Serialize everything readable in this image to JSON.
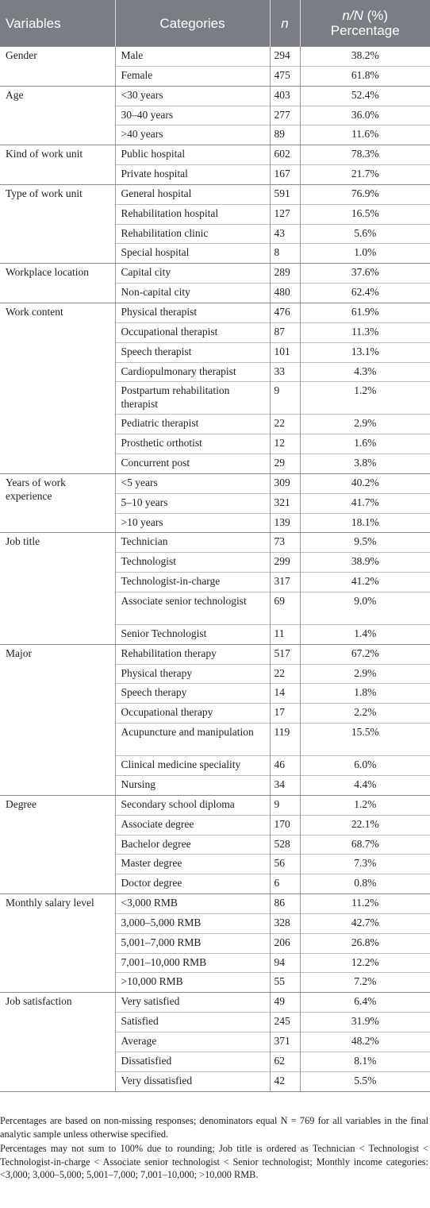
{
  "headers": {
    "variables": "Variables",
    "categories": "Categories",
    "n": "n",
    "pct_italic": "n/N",
    "pct_rest": " (%)",
    "pct_line2": "Percentage"
  },
  "groups": [
    {
      "name": "Gender",
      "rows": [
        {
          "category": "Male",
          "n": "294",
          "pct": "38.2%"
        },
        {
          "category": "Female",
          "n": "475",
          "pct": "61.8%"
        }
      ]
    },
    {
      "name": "Age",
      "rows": [
        {
          "category": "<30 years",
          "n": "403",
          "pct": "52.4%"
        },
        {
          "category": "30–40 years",
          "n": "277",
          "pct": "36.0%"
        },
        {
          "category": ">40 years",
          "n": "89",
          "pct": "11.6%"
        }
      ]
    },
    {
      "name": "Kind of work unit",
      "rows": [
        {
          "category": "Public hospital",
          "n": "602",
          "pct": "78.3%"
        },
        {
          "category": "Private hospital",
          "n": "167",
          "pct": "21.7%"
        }
      ]
    },
    {
      "name": "Type of work unit",
      "rows": [
        {
          "category": "General hospital",
          "n": "591",
          "pct": "76.9%"
        },
        {
          "category": "Rehabilitation hospital",
          "n": "127",
          "pct": "16.5%"
        },
        {
          "category": "Rehabilitation clinic",
          "n": "43",
          "pct": "5.6%"
        },
        {
          "category": "Special hospital",
          "n": "8",
          "pct": "1.0%"
        }
      ]
    },
    {
      "name": "Workplace location",
      "rows": [
        {
          "category": "Capital city",
          "n": "289",
          "pct": "37.6%"
        },
        {
          "category": "Non-capital city",
          "n": "480",
          "pct": "62.4%"
        }
      ]
    },
    {
      "name": "Work content",
      "rows": [
        {
          "category": "Physical therapist",
          "n": "476",
          "pct": "61.9%"
        },
        {
          "category": "Occupational therapist",
          "n": "87",
          "pct": "11.3%"
        },
        {
          "category": "Speech therapist",
          "n": "101",
          "pct": "13.1%"
        },
        {
          "category": "Cardiopulmonary therapist",
          "n": "33",
          "pct": "4.3%"
        },
        {
          "category": "Postpartum rehabilitation therapist",
          "n": "9",
          "pct": "1.2%",
          "tall": true
        },
        {
          "category": "Pediatric therapist",
          "n": "22",
          "pct": "2.9%"
        },
        {
          "category": "Prosthetic orthotist",
          "n": "12",
          "pct": "1.6%"
        },
        {
          "category": "Concurrent post",
          "n": "29",
          "pct": "3.8%"
        }
      ]
    },
    {
      "name": "Years of work experience",
      "rows": [
        {
          "category": "<5 years",
          "n": "309",
          "pct": "40.2%"
        },
        {
          "category": "5–10 years",
          "n": "321",
          "pct": "41.7%"
        },
        {
          "category": ">10 years",
          "n": "139",
          "pct": "18.1%"
        }
      ]
    },
    {
      "name": "Job title",
      "rows": [
        {
          "category": "Technician",
          "n": "73",
          "pct": "9.5%"
        },
        {
          "category": "Technologist",
          "n": "299",
          "pct": "38.9%"
        },
        {
          "category": "Technologist-in-charge",
          "n": "317",
          "pct": "41.2%"
        },
        {
          "category": "Associate senior technologist",
          "n": "69",
          "pct": "9.0%",
          "tall": true
        },
        {
          "category": "Senior Technologist",
          "n": "11",
          "pct": "1.4%"
        }
      ]
    },
    {
      "name": "Major",
      "rows": [
        {
          "category": "Rehabilitation therapy",
          "n": "517",
          "pct": "67.2%"
        },
        {
          "category": "Physical therapy",
          "n": "22",
          "pct": "2.9%"
        },
        {
          "category": "Speech therapy",
          "n": "14",
          "pct": "1.8%"
        },
        {
          "category": "Occupational therapy",
          "n": "17",
          "pct": "2.2%"
        },
        {
          "category": "Acupuncture and manipulation",
          "n": "119",
          "pct": "15.5%",
          "tall": true
        },
        {
          "category": "Clinical medicine speciality",
          "n": "46",
          "pct": "6.0%"
        },
        {
          "category": "Nursing",
          "n": "34",
          "pct": "4.4%"
        }
      ]
    },
    {
      "name": "Degree",
      "rows": [
        {
          "category": "Secondary school diploma",
          "n": "9",
          "pct": "1.2%"
        },
        {
          "category": "Associate degree",
          "n": "170",
          "pct": "22.1%"
        },
        {
          "category": "Bachelor degree",
          "n": "528",
          "pct": "68.7%"
        },
        {
          "category": "Master degree",
          "n": "56",
          "pct": "7.3%"
        },
        {
          "category": "Doctor degree",
          "n": "6",
          "pct": "0.8%"
        }
      ]
    },
    {
      "name": "Monthly salary level",
      "rows": [
        {
          "category": "<3,000 RMB",
          "n": "86",
          "pct": "11.2%"
        },
        {
          "category": "3,000–5,000 RMB",
          "n": "328",
          "pct": "42.7%"
        },
        {
          "category": "5,001–7,000 RMB",
          "n": "206",
          "pct": "26.8%"
        },
        {
          "category": "7,001–10,000 RMB",
          "n": "94",
          "pct": "12.2%"
        },
        {
          "category": ">10,000 RMB",
          "n": "55",
          "pct": "7.2%"
        }
      ]
    },
    {
      "name": "Job satisfaction",
      "rows": [
        {
          "category": "Very satisfied",
          "n": "49",
          "pct": "6.4%"
        },
        {
          "category": "Satisfied",
          "n": "245",
          "pct": "31.9%"
        },
        {
          "category": "Average",
          "n": "371",
          "pct": "48.2%"
        },
        {
          "category": "Dissatisfied",
          "n": "62",
          "pct": "8.1%"
        },
        {
          "category": "Very dissatisfied",
          "n": "42",
          "pct": "5.5%"
        }
      ]
    }
  ],
  "notes": [
    "Percentages are based on non-missing responses; denominators equal N = 769 for all variables in the final analytic sample unless otherwise specified.",
    "Percentages may not sum to 100% due to rounding; Job title is ordered as Technician < Technologist < Technologist-in-charge < Associate senior technologist < Senior technologist; Monthly income categories: <3,000; 3,000–5,000; 5,001–7,000; 7,001–10,000; >10,000 RMB."
  ]
}
